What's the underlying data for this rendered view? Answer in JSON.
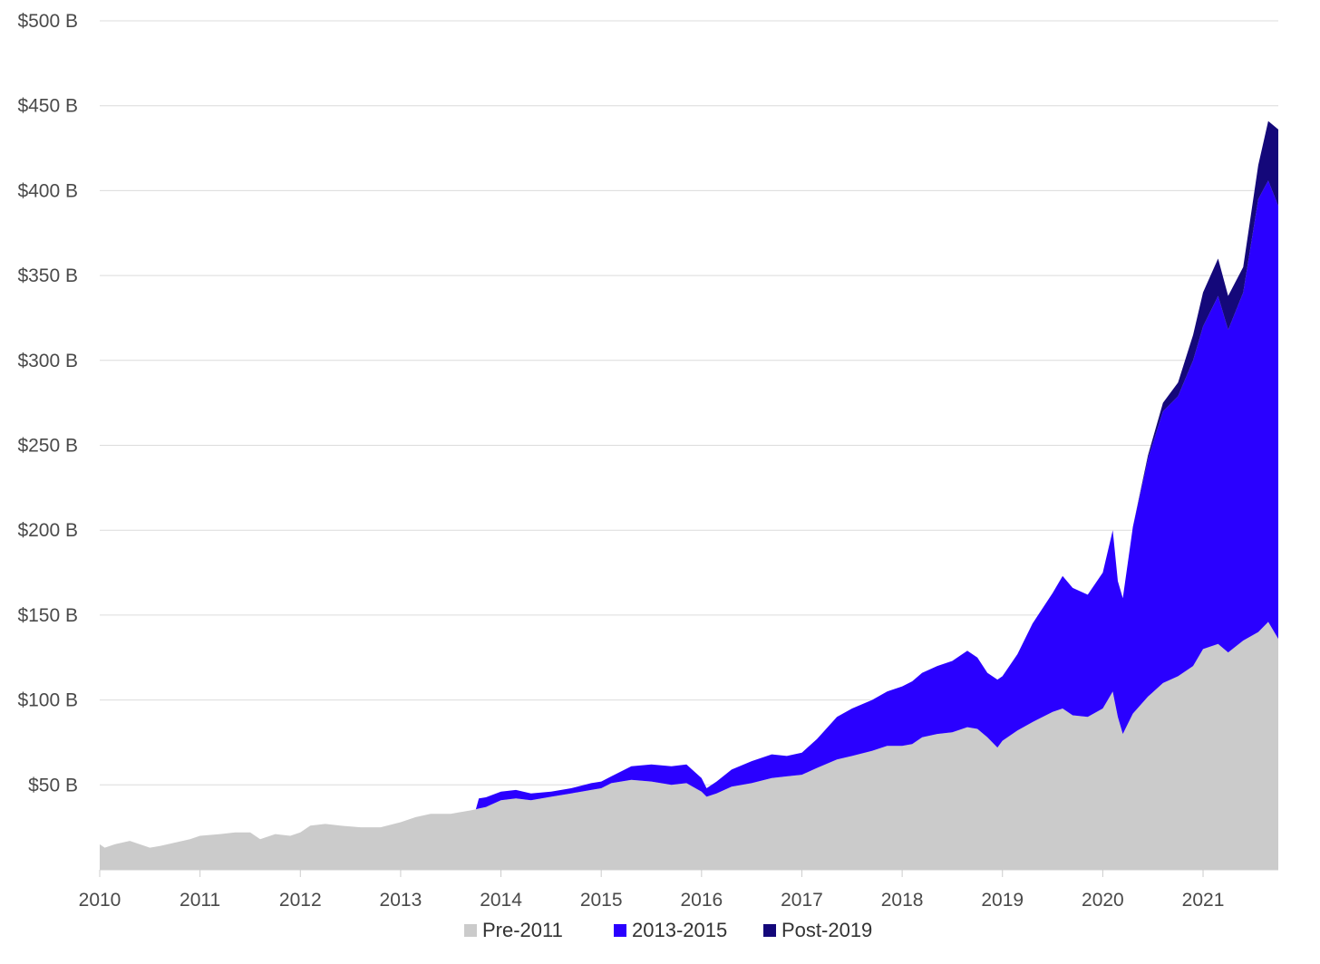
{
  "chart_data": {
    "type": "area",
    "stacked": true,
    "title": "",
    "xlabel": "",
    "ylabel": "",
    "ylim": [
      0,
      500
    ],
    "y_unit": "B",
    "y_ticks": [
      {
        "value": 50,
        "label": "$50 B"
      },
      {
        "value": 100,
        "label": "$100 B"
      },
      {
        "value": 150,
        "label": "$150 B"
      },
      {
        "value": 200,
        "label": "$200 B"
      },
      {
        "value": 250,
        "label": "$250 B"
      },
      {
        "value": 300,
        "label": "$300 B"
      },
      {
        "value": 350,
        "label": "$350 B"
      },
      {
        "value": 400,
        "label": "$400 B"
      },
      {
        "value": 450,
        "label": "$450 B"
      },
      {
        "value": 500,
        "label": "$500 B"
      }
    ],
    "xlim": [
      2010.0,
      2021.75
    ],
    "x_ticks": [
      {
        "value": 2010,
        "label": "2010"
      },
      {
        "value": 2011,
        "label": "2011"
      },
      {
        "value": 2012,
        "label": "2012"
      },
      {
        "value": 2013,
        "label": "2013"
      },
      {
        "value": 2014,
        "label": "2014"
      },
      {
        "value": 2015,
        "label": "2015"
      },
      {
        "value": 2016,
        "label": "2016"
      },
      {
        "value": 2017,
        "label": "2017"
      },
      {
        "value": 2018,
        "label": "2018"
      },
      {
        "value": 2019,
        "label": "2019"
      },
      {
        "value": 2020,
        "label": "2020"
      },
      {
        "value": 2021,
        "label": "2021"
      }
    ],
    "grid": "horizontal",
    "legend_position": "bottom-center",
    "series": [
      {
        "name": "Pre-2011",
        "color": "#cbcbcb",
        "points": [
          [
            2010.0,
            15
          ],
          [
            2010.05,
            13
          ],
          [
            2010.15,
            15
          ],
          [
            2010.3,
            17
          ],
          [
            2010.4,
            15
          ],
          [
            2010.5,
            13
          ],
          [
            2010.6,
            14
          ],
          [
            2010.75,
            16
          ],
          [
            2010.9,
            18
          ],
          [
            2011.0,
            20
          ],
          [
            2011.2,
            21
          ],
          [
            2011.35,
            22
          ],
          [
            2011.5,
            22
          ],
          [
            2011.6,
            18
          ],
          [
            2011.75,
            21
          ],
          [
            2011.9,
            20
          ],
          [
            2012.0,
            22
          ],
          [
            2012.1,
            26
          ],
          [
            2012.25,
            27
          ],
          [
            2012.4,
            26
          ],
          [
            2012.6,
            25
          ],
          [
            2012.8,
            25
          ],
          [
            2013.0,
            28
          ],
          [
            2013.15,
            31
          ],
          [
            2013.3,
            33
          ],
          [
            2013.5,
            33
          ],
          [
            2013.7,
            35
          ],
          [
            2013.85,
            37
          ],
          [
            2014.0,
            41
          ],
          [
            2014.15,
            42
          ],
          [
            2014.3,
            41
          ],
          [
            2014.5,
            43
          ],
          [
            2014.7,
            45
          ],
          [
            2014.9,
            47
          ],
          [
            2015.0,
            48
          ],
          [
            2015.1,
            51
          ],
          [
            2015.3,
            53
          ],
          [
            2015.5,
            52
          ],
          [
            2015.7,
            50
          ],
          [
            2015.85,
            51
          ],
          [
            2016.0,
            46
          ],
          [
            2016.05,
            43
          ],
          [
            2016.15,
            45
          ],
          [
            2016.3,
            49
          ],
          [
            2016.5,
            51
          ],
          [
            2016.7,
            54
          ],
          [
            2016.85,
            55
          ],
          [
            2017.0,
            56
          ],
          [
            2017.15,
            60
          ],
          [
            2017.35,
            65
          ],
          [
            2017.5,
            67
          ],
          [
            2017.7,
            70
          ],
          [
            2017.85,
            73
          ],
          [
            2018.0,
            73
          ],
          [
            2018.1,
            74
          ],
          [
            2018.2,
            78
          ],
          [
            2018.35,
            80
          ],
          [
            2018.5,
            81
          ],
          [
            2018.65,
            84
          ],
          [
            2018.75,
            83
          ],
          [
            2018.85,
            78
          ],
          [
            2018.95,
            72
          ],
          [
            2019.0,
            76
          ],
          [
            2019.15,
            82
          ],
          [
            2019.3,
            87
          ],
          [
            2019.5,
            93
          ],
          [
            2019.6,
            95
          ],
          [
            2019.7,
            91
          ],
          [
            2019.85,
            90
          ],
          [
            2020.0,
            95
          ],
          [
            2020.1,
            105
          ],
          [
            2020.15,
            90
          ],
          [
            2020.2,
            80
          ],
          [
            2020.3,
            92
          ],
          [
            2020.45,
            102
          ],
          [
            2020.6,
            110
          ],
          [
            2020.75,
            114
          ],
          [
            2020.9,
            120
          ],
          [
            2021.0,
            130
          ],
          [
            2021.15,
            133
          ],
          [
            2021.25,
            128
          ],
          [
            2021.4,
            135
          ],
          [
            2021.55,
            140
          ],
          [
            2021.65,
            146
          ],
          [
            2021.75,
            136
          ]
        ]
      },
      {
        "name": "2013-2015",
        "color": "#2a00ff",
        "points": [
          [
            2013.75,
            0
          ],
          [
            2013.78,
            6
          ],
          [
            2014.0,
            5
          ],
          [
            2014.15,
            5
          ],
          [
            2014.3,
            4
          ],
          [
            2014.5,
            3
          ],
          [
            2014.7,
            3
          ],
          [
            2014.9,
            4
          ],
          [
            2015.0,
            4
          ],
          [
            2015.1,
            4
          ],
          [
            2015.3,
            8
          ],
          [
            2015.5,
            10
          ],
          [
            2015.7,
            11
          ],
          [
            2015.85,
            11
          ],
          [
            2016.0,
            8
          ],
          [
            2016.05,
            5
          ],
          [
            2016.15,
            7
          ],
          [
            2016.3,
            10
          ],
          [
            2016.5,
            13
          ],
          [
            2016.7,
            14
          ],
          [
            2016.85,
            12
          ],
          [
            2017.0,
            13
          ],
          [
            2017.15,
            17
          ],
          [
            2017.35,
            25
          ],
          [
            2017.5,
            28
          ],
          [
            2017.7,
            30
          ],
          [
            2017.85,
            32
          ],
          [
            2018.0,
            35
          ],
          [
            2018.1,
            37
          ],
          [
            2018.2,
            38
          ],
          [
            2018.35,
            40
          ],
          [
            2018.5,
            42
          ],
          [
            2018.65,
            45
          ],
          [
            2018.75,
            42
          ],
          [
            2018.85,
            38
          ],
          [
            2018.95,
            40
          ],
          [
            2019.0,
            38
          ],
          [
            2019.15,
            45
          ],
          [
            2019.3,
            58
          ],
          [
            2019.5,
            70
          ],
          [
            2019.6,
            78
          ],
          [
            2019.7,
            75
          ],
          [
            2019.85,
            72
          ],
          [
            2020.0,
            80
          ],
          [
            2020.1,
            95
          ],
          [
            2020.15,
            80
          ],
          [
            2020.2,
            80
          ],
          [
            2020.3,
            110
          ],
          [
            2020.45,
            140
          ],
          [
            2020.6,
            160
          ],
          [
            2020.75,
            165
          ],
          [
            2020.9,
            180
          ],
          [
            2021.0,
            190
          ],
          [
            2021.15,
            205
          ],
          [
            2021.25,
            190
          ],
          [
            2021.4,
            205
          ],
          [
            2021.55,
            255
          ],
          [
            2021.65,
            260
          ],
          [
            2021.75,
            255
          ]
        ]
      },
      {
        "name": "Post-2019",
        "color": "#14087a",
        "points": [
          [
            2020.3,
            0
          ],
          [
            2020.45,
            2
          ],
          [
            2020.6,
            5
          ],
          [
            2020.75,
            8
          ],
          [
            2020.9,
            15
          ],
          [
            2021.0,
            20
          ],
          [
            2021.15,
            22
          ],
          [
            2021.25,
            20
          ],
          [
            2021.4,
            15
          ],
          [
            2021.55,
            20
          ],
          [
            2021.65,
            35
          ],
          [
            2021.75,
            45
          ]
        ]
      }
    ]
  }
}
